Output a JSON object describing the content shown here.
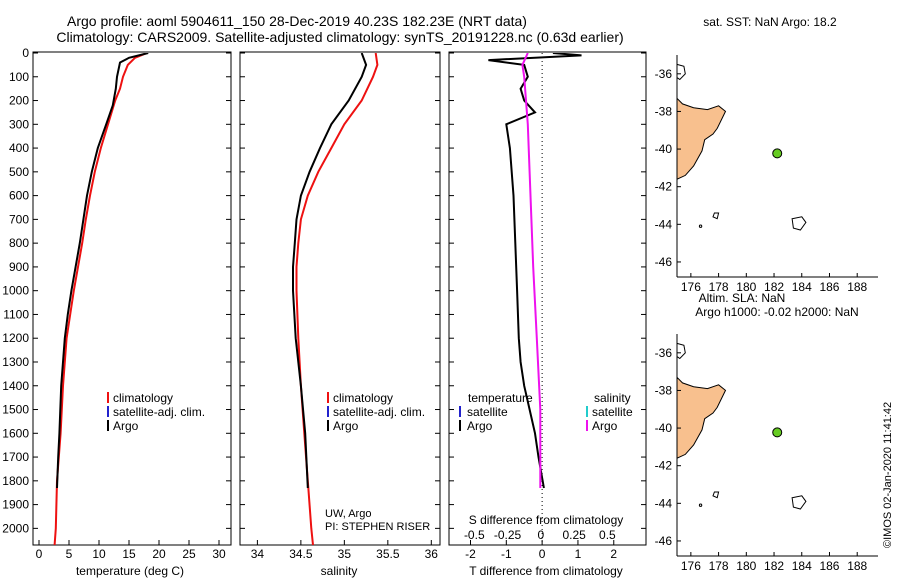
{
  "title": {
    "line1": "Argo profile: aoml 5904611_150 28-Dec-2019 40.23S 182.23E (NRT data)",
    "line2": "Climatology: CARS2009. Satellite-adjusted climatology: synTS_20191228.nc (0.63d earlier)"
  },
  "colors": {
    "argo": "#000000",
    "climatology": "#ee1111",
    "satellite": "#2222cc",
    "sat_salinity": "#22cccc",
    "argo_salinity_diff": "#ee11ee",
    "land": "#f8c08e",
    "float_marker": "#66cc22"
  },
  "y_axis": {
    "ticks": [
      "0",
      "100",
      "200",
      "300",
      "400",
      "500",
      "600",
      "700",
      "800",
      "900",
      "1000",
      "1100",
      "1200",
      "1300",
      "1400",
      "1500",
      "1600",
      "1700",
      "1800",
      "1900",
      "2000"
    ],
    "range": [
      0,
      2070
    ],
    "inverted": true
  },
  "panels": {
    "temperature": {
      "xlabel": "temperature (deg C)",
      "xticks": [
        "0",
        "5",
        "10",
        "15",
        "20",
        "25",
        "30"
      ],
      "legend": [
        "climatology",
        "satellite-adj. clim.",
        "Argo"
      ]
    },
    "salinity": {
      "xlabel": "salinity",
      "xticks": [
        "34",
        "34.5",
        "35",
        "35.5",
        "36"
      ],
      "legend": [
        "climatology",
        "satellite-adj. clim.",
        "Argo"
      ],
      "credit1": "UW, Argo",
      "credit2": "PI: STEPHEN RISER"
    },
    "difference": {
      "xlabel": "T difference from climatology",
      "xticks": [
        "-2",
        "-1",
        "0",
        "1",
        "2"
      ],
      "top_label": "S difference from climatology",
      "top_ticks": [
        "-0.5",
        "-0.25",
        "0",
        "0.25",
        "0.5"
      ],
      "legend_temp_title": "temperature",
      "legend_temp": [
        "satellite",
        "Argo"
      ],
      "legend_sal_title": "salinity",
      "legend_sal": [
        "satellite",
        "Argo"
      ]
    }
  },
  "maps": {
    "sst": {
      "title": "sat. SST: NaN Argo: 18.2"
    },
    "sla": {
      "title1": "Altim. SLA: NaN",
      "title2": "Argo h1000: -0.02 h2000: NaN"
    },
    "lat_ticks": [
      "-36",
      "-38",
      "-40",
      "-42",
      "-44",
      "-46"
    ],
    "lon_ticks": [
      "176",
      "178",
      "180",
      "182",
      "184",
      "186",
      "188"
    ],
    "float_lon": 182.23,
    "float_lat": -40.23
  },
  "stamp": "©IMOS 02-Jan-2020 11:41:42",
  "chart_data": [
    {
      "type": "line",
      "title": "",
      "xlabel": "temperature (deg C)",
      "ylabel": "",
      "xlim": [
        -1,
        32
      ],
      "ylim": [
        2070,
        0
      ],
      "series": [
        {
          "name": "climatology",
          "x": [
            18.0,
            16.0,
            14.8,
            14.0,
            13.5,
            12.7,
            11.5,
            10.3,
            9.3,
            8.5,
            7.8,
            7.2,
            6.5,
            5.8,
            5.2,
            4.6,
            4.0,
            3.6,
            3.3,
            3.0,
            2.8,
            2.6
          ],
          "y": [
            0,
            20,
            50,
            100,
            150,
            200,
            300,
            400,
            500,
            600,
            700,
            800,
            900,
            1000,
            1100,
            1200,
            1400,
            1600,
            1700,
            1800,
            2000,
            2070
          ]
        },
        {
          "name": "Argo",
          "x": [
            18.2,
            15.0,
            13.5,
            13.0,
            12.8,
            12.3,
            11.2,
            9.8,
            8.8,
            8.0,
            7.4,
            6.8,
            6.1,
            5.4,
            4.8,
            4.3,
            3.7,
            3.4,
            3.2,
            3.0
          ],
          "y": [
            0,
            20,
            40,
            100,
            150,
            220,
            300,
            400,
            500,
            600,
            700,
            800,
            900,
            1000,
            1100,
            1200,
            1400,
            1600,
            1700,
            1830
          ]
        }
      ]
    },
    {
      "type": "line",
      "title": "",
      "xlabel": "salinity",
      "ylabel": "",
      "xlim": [
        33.8,
        36.1
      ],
      "ylim": [
        2070,
        0
      ],
      "series": [
        {
          "name": "climatology",
          "x": [
            35.36,
            35.38,
            35.33,
            35.2,
            35.0,
            34.85,
            34.7,
            34.58,
            34.5,
            34.47,
            34.45,
            34.45,
            34.47,
            34.5,
            34.54,
            34.58,
            34.62,
            34.64
          ],
          "y": [
            0,
            50,
            100,
            200,
            300,
            400,
            500,
            600,
            700,
            800,
            900,
            1000,
            1200,
            1400,
            1600,
            1800,
            2000,
            2070
          ]
        },
        {
          "name": "Argo",
          "x": [
            35.2,
            35.25,
            35.2,
            35.05,
            34.85,
            34.72,
            34.6,
            34.5,
            34.45,
            34.43,
            34.41,
            34.41,
            34.44,
            34.5,
            34.55,
            34.58
          ],
          "y": [
            0,
            50,
            100,
            200,
            300,
            400,
            500,
            600,
            700,
            800,
            900,
            1000,
            1200,
            1400,
            1600,
            1830
          ]
        }
      ]
    },
    {
      "type": "line",
      "title": "",
      "xlabel": "T difference from climatology",
      "ylabel": "",
      "xlim": [
        -2.6,
        2.9
      ],
      "ylim": [
        2070,
        0
      ],
      "series": [
        {
          "name": "temperature Argo",
          "x": [
            0.3,
            1.1,
            -1.5,
            -0.5,
            -0.4,
            -0.6,
            -0.5,
            -0.2,
            -1.0,
            -0.9,
            -0.8,
            -0.75,
            -0.7,
            -0.65,
            -0.6,
            -0.5,
            -0.35,
            -0.2,
            -0.1,
            0.05
          ],
          "y": [
            0,
            10,
            30,
            50,
            100,
            150,
            200,
            250,
            300,
            400,
            600,
            800,
            1000,
            1200,
            1300,
            1400,
            1500,
            1600,
            1700,
            1830
          ]
        },
        {
          "name": "salinity Argo",
          "x": [
            -0.4,
            -0.55,
            -0.5,
            -0.45,
            -0.4,
            -0.35,
            -0.3,
            -0.25,
            -0.15,
            -0.05,
            -0.05
          ],
          "y": [
            0,
            50,
            100,
            200,
            300,
            500,
            700,
            900,
            1200,
            1500,
            1830
          ]
        }
      ]
    }
  ]
}
